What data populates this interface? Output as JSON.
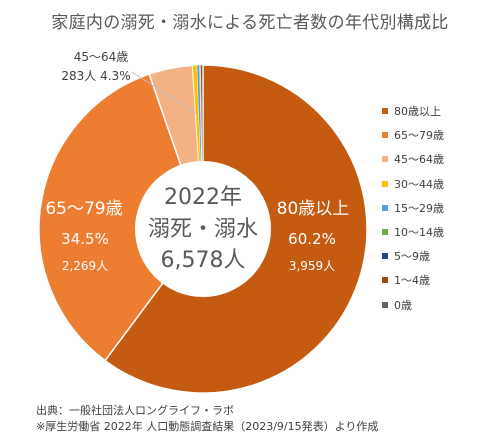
{
  "title": "家庭内の溺死・溺水による死亡者数の年代別構成比",
  "center": {
    "year": "2022年",
    "label": "溺死・溺水",
    "total": "6,578人"
  },
  "slice_labels": {
    "age80": {
      "name": "80歳以上",
      "percent": "60.2%",
      "count": "3,959人"
    },
    "age65": {
      "name": "65～79歳",
      "percent": "34.5%",
      "count": "2,269人"
    },
    "age45": {
      "name": "45～64歳",
      "count_percent": "283人 4.3%"
    }
  },
  "source": "出典：一般社団法人ロングライフ・ラボ",
  "note": "※厚生労働省 2022年 人口動態調査結果（2023/9/15発表）より作成",
  "chart_data": {
    "type": "pie",
    "title": "家庭内の溺死・溺水による死亡者数の年代別構成比",
    "unit": "人",
    "categories": [
      "80歳以上",
      "65～79歳",
      "45～64歳",
      "30～44歳",
      "15～29歳",
      "10～14歳",
      "5～9歳",
      "1～4歳",
      "0歳"
    ],
    "values": [
      3959,
      2269,
      283,
      28,
      17,
      3,
      4,
      11,
      4
    ],
    "percents": [
      60.2,
      34.5,
      4.3,
      null,
      null,
      null,
      null,
      null,
      null
    ],
    "colors": [
      "#C55A11",
      "#ED7D31",
      "#F4B183",
      "#FFC000",
      "#5B9BD5",
      "#70AD47",
      "#264478",
      "#9E480E",
      "#636363"
    ],
    "legend_position": "right"
  }
}
